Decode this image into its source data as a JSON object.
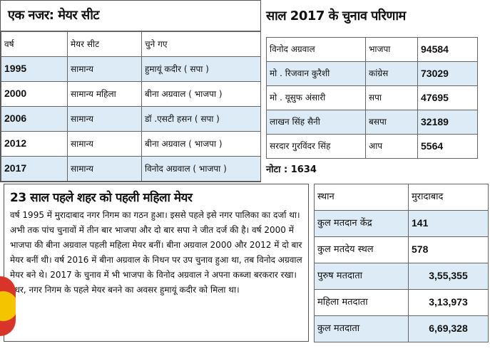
{
  "mayor_seat": {
    "title": "एक नजर: मेयर सीट",
    "headers": [
      "वर्ष",
      "मेयर सीट",
      "चुने गए"
    ],
    "rows": [
      [
        "1995",
        "सामान्य",
        "हुमायूं कदीर ( सपा )"
      ],
      [
        "2000",
        "सामान्य महिला",
        "बीना अग्रवाल ( भाजपा )"
      ],
      [
        "2006",
        "सामान्य",
        "डॉ .एसटी हसन ( सपा )"
      ],
      [
        "2012",
        "सामान्य",
        "बीना अग्रवाल ( भाजपा )"
      ],
      [
        "2017",
        "सामान्य",
        "विनोद अग्रवाल ( भाजपा )"
      ]
    ]
  },
  "results_2017": {
    "title": "साल 2017 के चुनाव परिणाम",
    "rows": [
      [
        "विनोद अग्रवाल",
        "भाजपा",
        "94584"
      ],
      [
        "मो . रिजवान कुरैशी",
        "कांग्रेस",
        "73029"
      ],
      [
        "मो . यूसुफ अंसारी",
        "सपा",
        "47695"
      ],
      [
        "लाखन सिंह सैनी",
        "बसपा",
        "32189"
      ],
      [
        "सरदार गुरविंदर सिंह",
        "आप",
        "5564"
      ]
    ],
    "nota": "नोटा : 1634"
  },
  "article": {
    "title": "23 साल पहले शहर को पहली महिला मेयर",
    "body": "वर्ष 1995 में मुरादाबाद नगर निगम का गठन हुआ। इससे पहले इसे नगर पालिका का दर्जा था। अभी तक पांच चुनावों में तीन बार भाजपा और दो बार सपा ने जीत दर्ज की है। वर्ष 2000 में भाजपा की बीना अग्रवाल पहली महिला मेयर बनीं। बीना अग्रवाल 2000 और 2012 में दो बार मेयर बनीं थी। वर्ष 2016 में बीना अग्रवाल के निधन पर उप चुनाव हुआ था, तब विनोद अग्रवाल मेयर बने थे। 2017 के चुनाव में भी भाजपा के विनोद अग्रवाल ने अपना कब्जा बरकरार रखा। उधर, नगर निगम के पहले मेयर बनने का अवसर हुमायूं कदीर को मिला था।"
  },
  "stats": {
    "headers": [
      "स्थान",
      "मुरादाबाद"
    ],
    "rows": [
      [
        "कुल मतदान केंद्र",
        "141"
      ],
      [
        "कुल मतदेय स्थल",
        "578"
      ],
      [
        "पुरुष मतदाता",
        "3,55,355"
      ],
      [
        "महिला मतदाता",
        "3,13,973"
      ],
      [
        "कुल मतदाता",
        "6,69,328"
      ]
    ]
  }
}
